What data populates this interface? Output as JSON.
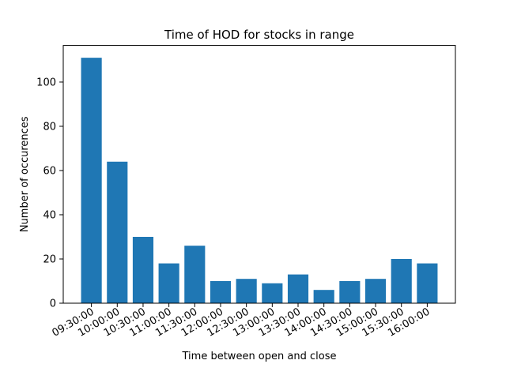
{
  "chart_data": {
    "type": "bar",
    "title": "Time of HOD for stocks in range",
    "xlabel": "Time between open and close",
    "ylabel": "Number of occurences",
    "categories": [
      "09:30:00",
      "10:00:00",
      "10:30:00",
      "11:00:00",
      "11:30:00",
      "12:00:00",
      "12:30:00",
      "13:00:00",
      "13:30:00",
      "14:00:00",
      "14:30:00",
      "15:00:00",
      "15:30:00",
      "16:00:00"
    ],
    "values": [
      111,
      64,
      30,
      18,
      26,
      10,
      11,
      9,
      13,
      6,
      10,
      11,
      20,
      18
    ],
    "ylim": [
      0,
      116.55
    ],
    "yticks": [
      0,
      20,
      40,
      60,
      80,
      100
    ],
    "grid": false,
    "bar_color": "#1f77b4"
  }
}
